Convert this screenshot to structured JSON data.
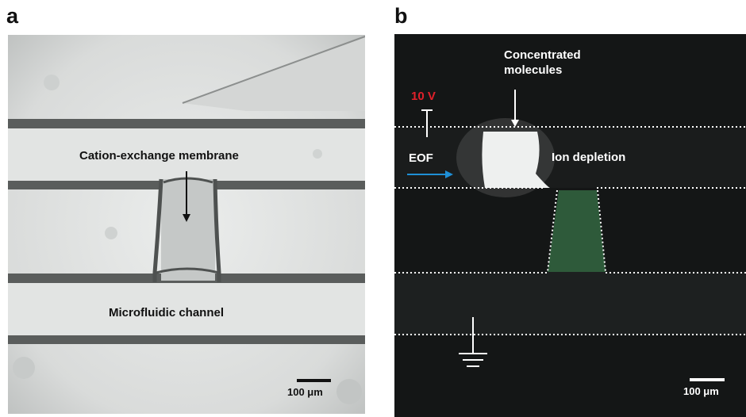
{
  "panel_a": {
    "letter": "a",
    "membrane_label": "Cation-exchange membrane",
    "channel_label": "Microfluidic channel",
    "scale_label": "100 μm"
  },
  "panel_b": {
    "letter": "b",
    "concentrated_label_line1": "Concentrated",
    "concentrated_label_line2": "molecules",
    "voltage_label": "10 V",
    "eof_label": "EOF",
    "depletion_label": "Ion depletion",
    "scale_label": "100 μm"
  },
  "colors": {
    "voltage": "#e0202a",
    "eof_arrow": "#1f8fd6",
    "membrane_fill": "#2e5a3a"
  }
}
